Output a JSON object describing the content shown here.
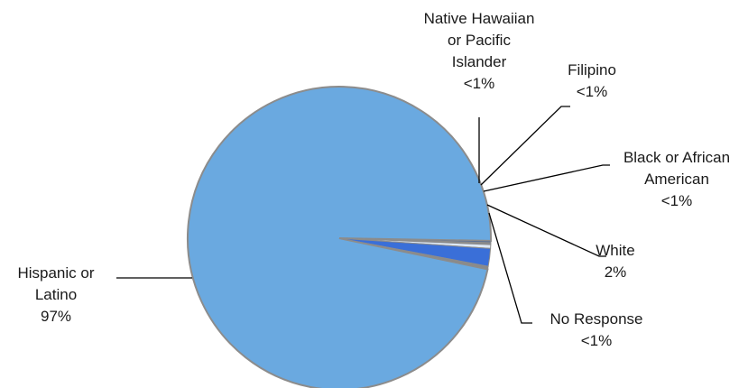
{
  "chart_data": {
    "type": "pie",
    "title": "",
    "slices": [
      {
        "name": "Hispanic or Latino",
        "value": 97,
        "label_lines": [
          "Hispanic or",
          "Latino"
        ],
        "pct_label": "97%",
        "color": "#6aa9e0"
      },
      {
        "name": "Native Hawaiian or Pacific Islander",
        "value": 0.2,
        "label_lines": [
          "Native Hawaiian",
          "or Pacific",
          "Islander"
        ],
        "pct_label": "<1%",
        "color": "#5a6f92"
      },
      {
        "name": "Filipino",
        "value": 0.2,
        "label_lines": [
          "Filipino"
        ],
        "pct_label": "<1%",
        "color": "#8a8a8a"
      },
      {
        "name": "Black or African American",
        "value": 0.4,
        "label_lines": [
          "Black or African",
          "American"
        ],
        "pct_label": "<1%",
        "color": "#dde8f5"
      },
      {
        "name": "White",
        "value": 1.9,
        "label_lines": [
          "White"
        ],
        "pct_label": "2%",
        "color": "#3a6fd8"
      },
      {
        "name": "No Response",
        "value": 0.3,
        "label_lines": [
          "No Response"
        ],
        "pct_label": "<1%",
        "color": "#8a8a8a"
      }
    ],
    "colors": {
      "border": "#8c8c8c",
      "leader": "#000000"
    }
  }
}
